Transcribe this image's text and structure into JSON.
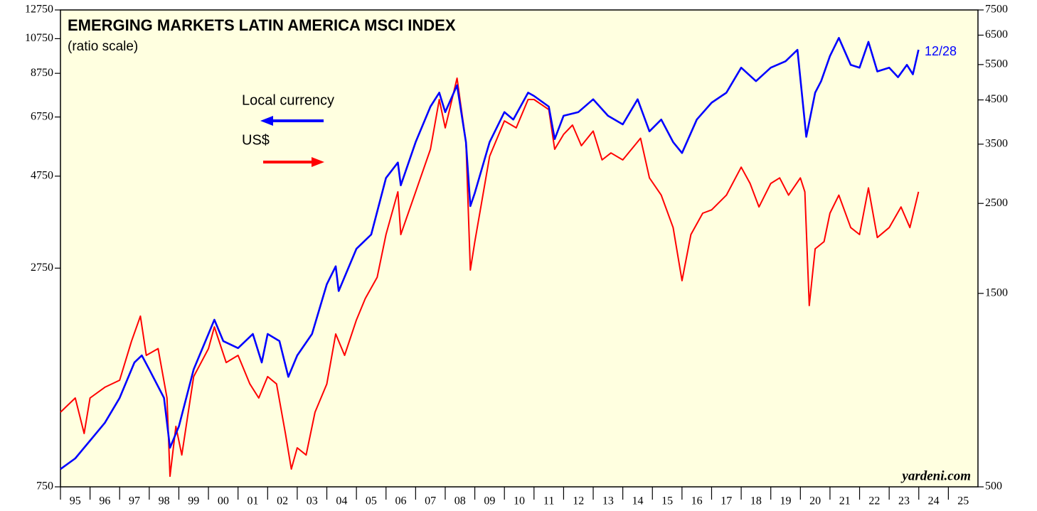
{
  "chart_data": {
    "type": "line",
    "title": "EMERGING MARKETS LATIN AMERICA MSCI INDEX",
    "subtitle": "(ratio scale)",
    "annotations": [
      "12/28",
      "yardeni.com"
    ],
    "log_scale": true,
    "xlim": [
      1995,
      2026
    ],
    "xticks": [
      {
        "value": 1995,
        "label": "95"
      },
      {
        "value": 1996,
        "label": "96"
      },
      {
        "value": 1997,
        "label": "97"
      },
      {
        "value": 1998,
        "label": "98"
      },
      {
        "value": 1999,
        "label": "99"
      },
      {
        "value": 2000,
        "label": "00"
      },
      {
        "value": 2001,
        "label": "01"
      },
      {
        "value": 2002,
        "label": "02"
      },
      {
        "value": 2003,
        "label": "03"
      },
      {
        "value": 2004,
        "label": "04"
      },
      {
        "value": 2005,
        "label": "05"
      },
      {
        "value": 2006,
        "label": "06"
      },
      {
        "value": 2007,
        "label": "07"
      },
      {
        "value": 2008,
        "label": "08"
      },
      {
        "value": 2009,
        "label": "09"
      },
      {
        "value": 2010,
        "label": "10"
      },
      {
        "value": 2011,
        "label": "11"
      },
      {
        "value": 2012,
        "label": "12"
      },
      {
        "value": 2013,
        "label": "13"
      },
      {
        "value": 2014,
        "label": "14"
      },
      {
        "value": 2015,
        "label": "15"
      },
      {
        "value": 2016,
        "label": "16"
      },
      {
        "value": 2017,
        "label": "17"
      },
      {
        "value": 2018,
        "label": "18"
      },
      {
        "value": 2019,
        "label": "19"
      },
      {
        "value": 2020,
        "label": "20"
      },
      {
        "value": 2021,
        "label": "21"
      },
      {
        "value": 2022,
        "label": "22"
      },
      {
        "value": 2023,
        "label": "23"
      },
      {
        "value": 2024,
        "label": "24"
      },
      {
        "value": 2025,
        "label": "25"
      }
    ],
    "ylim": [
      750,
      12750
    ],
    "yticks": [
      750,
      2750,
      4750,
      6750,
      8750,
      10750,
      12750
    ],
    "y2lim": [
      500,
      7500
    ],
    "y2ticks": [
      500,
      1500,
      2500,
      3500,
      4500,
      5500,
      6500,
      7500
    ],
    "series": [
      {
        "name": "Local currency",
        "color": "#0000ff",
        "x": [
          1995.0,
          1995.5,
          1996.0,
          1996.5,
          1997.0,
          1997.5,
          1997.75,
          1998.0,
          1998.5,
          1998.7,
          1999.0,
          1999.5,
          2000.0,
          2000.2,
          2000.5,
          2001.0,
          2001.5,
          2001.8,
          2002.0,
          2002.4,
          2002.7,
          2003.0,
          2003.5,
          2004.0,
          2004.3,
          2004.4,
          2005.0,
          2005.5,
          2006.0,
          2006.4,
          2006.5,
          2007.0,
          2007.5,
          2007.8,
          2008.0,
          2008.4,
          2008.7,
          2008.85,
          2009.0,
          2009.5,
          2010.0,
          2010.3,
          2010.8,
          2011.0,
          2011.5,
          2011.7,
          2012.0,
          2012.5,
          2013.0,
          2013.5,
          2014.0,
          2014.5,
          2014.9,
          2015.3,
          2015.7,
          2016.0,
          2016.5,
          2017.0,
          2017.5,
          2018.0,
          2018.5,
          2019.0,
          2019.5,
          2019.9,
          2020.2,
          2020.5,
          2020.7,
          2021.0,
          2021.3,
          2021.7,
          2022.0,
          2022.3,
          2022.6,
          2023.0,
          2023.3,
          2023.6,
          2023.8,
          2023.99
        ],
        "values": [
          833,
          888,
          987,
          1097,
          1272,
          1570,
          1637,
          1507,
          1272,
          946,
          1074,
          1507,
          1860,
          2024,
          1783,
          1710,
          1860,
          1570,
          1860,
          1783,
          1442,
          1637,
          1860,
          2500,
          2780,
          2400,
          3085,
          3358,
          4700,
          5150,
          4500,
          5815,
          7180,
          7800,
          6950,
          8150,
          5815,
          3975,
          4300,
          5815,
          6950,
          6650,
          7800,
          7650,
          7180,
          5920,
          6800,
          6950,
          7500,
          6800,
          6460,
          7500,
          6200,
          6650,
          5815,
          5450,
          6650,
          7350,
          7800,
          9050,
          8350,
          9050,
          9400,
          10060,
          6000,
          7800,
          8350,
          9700,
          10800,
          9200,
          9050,
          10550,
          8850,
          9050,
          8550,
          9200,
          8700,
          10060
        ]
      },
      {
        "name": "US$",
        "color": "#ff0000",
        "axis": "y2",
        "x": [
          1995.0,
          1995.5,
          1995.8,
          1996.0,
          1996.5,
          1997.0,
          1997.4,
          1997.7,
          1997.9,
          1998.3,
          1998.6,
          1998.7,
          1998.9,
          1999.1,
          1999.5,
          2000.0,
          2000.2,
          2000.6,
          2001.0,
          2001.4,
          2001.7,
          2002.0,
          2002.3,
          2002.6,
          2002.8,
          2003.0,
          2003.3,
          2003.6,
          2004.0,
          2004.3,
          2004.6,
          2005.0,
          2005.3,
          2005.7,
          2006.0,
          2006.4,
          2006.5,
          2007.0,
          2007.5,
          2007.8,
          2008.0,
          2008.4,
          2008.7,
          2008.85,
          2009.0,
          2009.5,
          2010.0,
          2010.4,
          2010.8,
          2011.0,
          2011.5,
          2011.7,
          2012.0,
          2012.3,
          2012.6,
          2013.0,
          2013.3,
          2013.6,
          2014.0,
          2014.6,
          2014.9,
          2015.3,
          2015.7,
          2016.0,
          2016.3,
          2016.7,
          2017.0,
          2017.5,
          2018.0,
          2018.3,
          2018.6,
          2019.0,
          2019.3,
          2019.6,
          2020.0,
          2020.15,
          2020.3,
          2020.5,
          2020.8,
          2021.0,
          2021.3,
          2021.7,
          2022.0,
          2022.3,
          2022.6,
          2023.0,
          2023.4,
          2023.7,
          2023.99
        ],
        "values": [
          764,
          828,
          677,
          828,
          880,
          916,
          1143,
          1318,
          1055,
          1096,
          828,
          531,
          705,
          599,
          935,
          1096,
          1240,
          1013,
          1055,
          897,
          828,
          935,
          897,
          677,
          553,
          624,
          599,
          764,
          897,
          1191,
          1055,
          1290,
          1457,
          1644,
          2095,
          2670,
          2095,
          2670,
          3400,
          4510,
          3840,
          5090,
          3540,
          1712,
          2012,
          3267,
          3995,
          3840,
          4510,
          4510,
          4260,
          3400,
          3700,
          3900,
          3470,
          3770,
          3200,
          3330,
          3200,
          3620,
          2890,
          2620,
          2180,
          1612,
          2095,
          2365,
          2410,
          2620,
          3072,
          2800,
          2450,
          2800,
          2890,
          2620,
          2890,
          2670,
          1400,
          1932,
          2012,
          2365,
          2620,
          2180,
          2095,
          2730,
          2060,
          2180,
          2450,
          2180,
          2670
        ]
      }
    ]
  }
}
